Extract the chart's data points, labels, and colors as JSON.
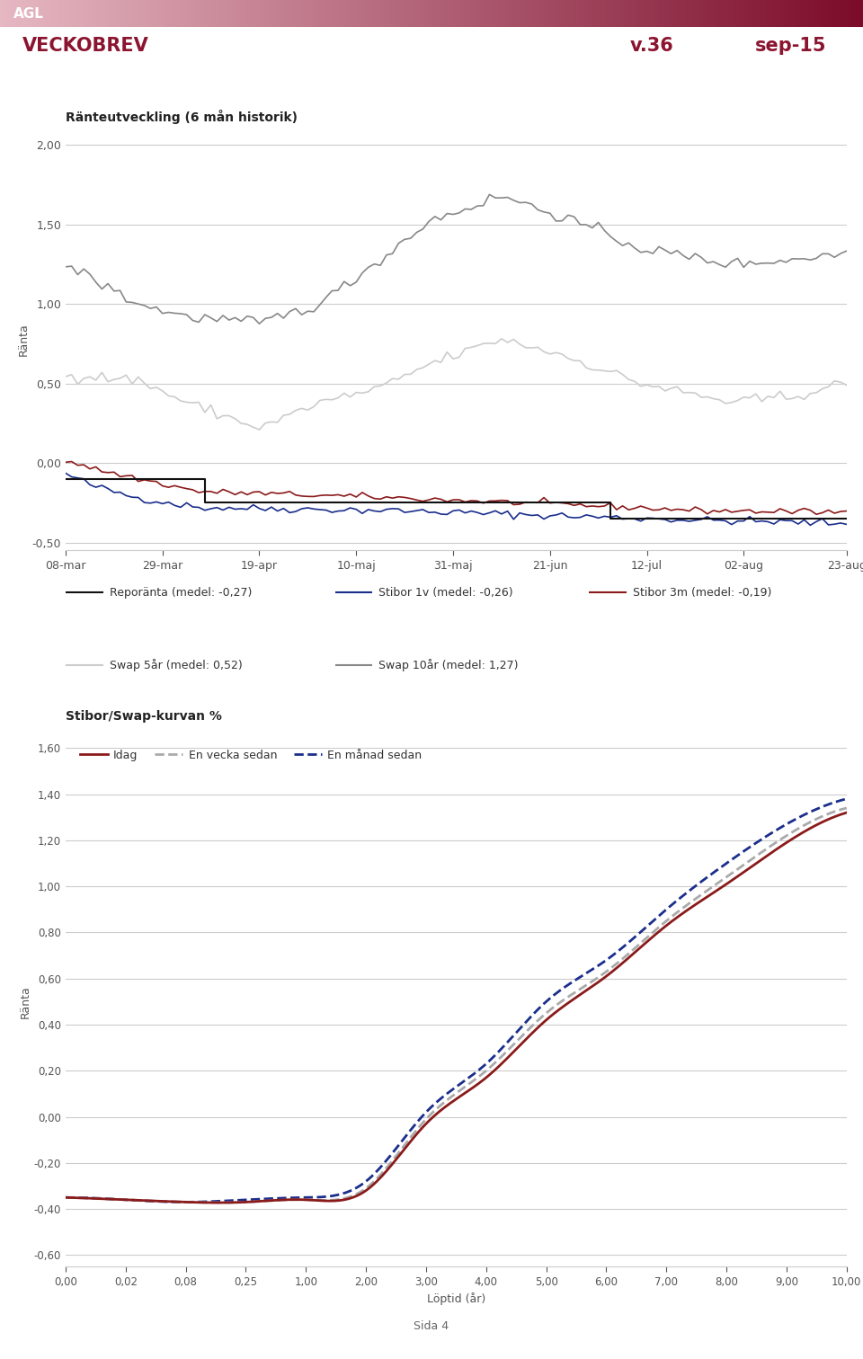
{
  "title_main": "VECKOBREV",
  "title_week": "v.36",
  "title_month": "sep-15",
  "agl_text": "AGL",
  "text_color": "#8B1530",
  "chart1_title": "Ränteutveckling (6 mån historik)",
  "chart1_ylabel": "Ränta",
  "chart1_yticks": [
    -0.5,
    0.0,
    0.5,
    1.0,
    1.5,
    2.0
  ],
  "chart1_ylim": [
    -0.55,
    2.1
  ],
  "chart1_xticklabels": [
    "08-mar",
    "29-mar",
    "19-apr",
    "10-maj",
    "31-maj",
    "21-jun",
    "12-jul",
    "02-aug",
    "23-aug"
  ],
  "legend1_row1": [
    {
      "label": "Reporänta (medel: -0,27)",
      "color": "#111111",
      "lw": 1.5,
      "ls": "-"
    },
    {
      "label": "Stibor 1v (medel: -0,26)",
      "color": "#1A2E8C",
      "lw": 1.5,
      "ls": "-"
    },
    {
      "label": "Stibor 3m (medel: -0,19)",
      "color": "#8B1A1A",
      "lw": 1.5,
      "ls": "-"
    }
  ],
  "legend1_row2": [
    {
      "label": "Swap 5år (medel: 0,52)",
      "color": "#CCCCCC",
      "lw": 1.5,
      "ls": "-"
    },
    {
      "label": "Swap 10år (medel: 1,27)",
      "color": "#888888",
      "lw": 1.5,
      "ls": "-"
    }
  ],
  "chart2_title": "Stibor/Swap-kurvan %",
  "chart2_xlabel": "Löptid (år)",
  "chart2_ylabel": "Ränta",
  "chart2_yticks": [
    -0.6,
    -0.4,
    -0.2,
    0.0,
    0.2,
    0.4,
    0.6,
    0.8,
    1.0,
    1.2,
    1.4,
    1.6
  ],
  "chart2_ylim": [
    -0.65,
    1.65
  ],
  "chart2_xticklabels": [
    "0,00",
    "0,02",
    "0,08",
    "0,25",
    "1,00",
    "2,00",
    "3,00",
    "4,00",
    "5,00",
    "6,00",
    "7,00",
    "8,00",
    "9,00",
    "10,00"
  ],
  "legend2": [
    {
      "label": "Idag",
      "color": "#8B1A1A",
      "lw": 2.0,
      "ls": "-"
    },
    {
      "label": "En vecka sedan",
      "color": "#AAAAAA",
      "lw": 2.0,
      "ls": "--"
    },
    {
      "label": "En månad sedan",
      "color": "#1A2E8C",
      "lw": 2.0,
      "ls": "--"
    }
  ],
  "footer_text": "Sida 4",
  "bg_color": "#FFFFFF",
  "grid_color": "#CCCCCC"
}
